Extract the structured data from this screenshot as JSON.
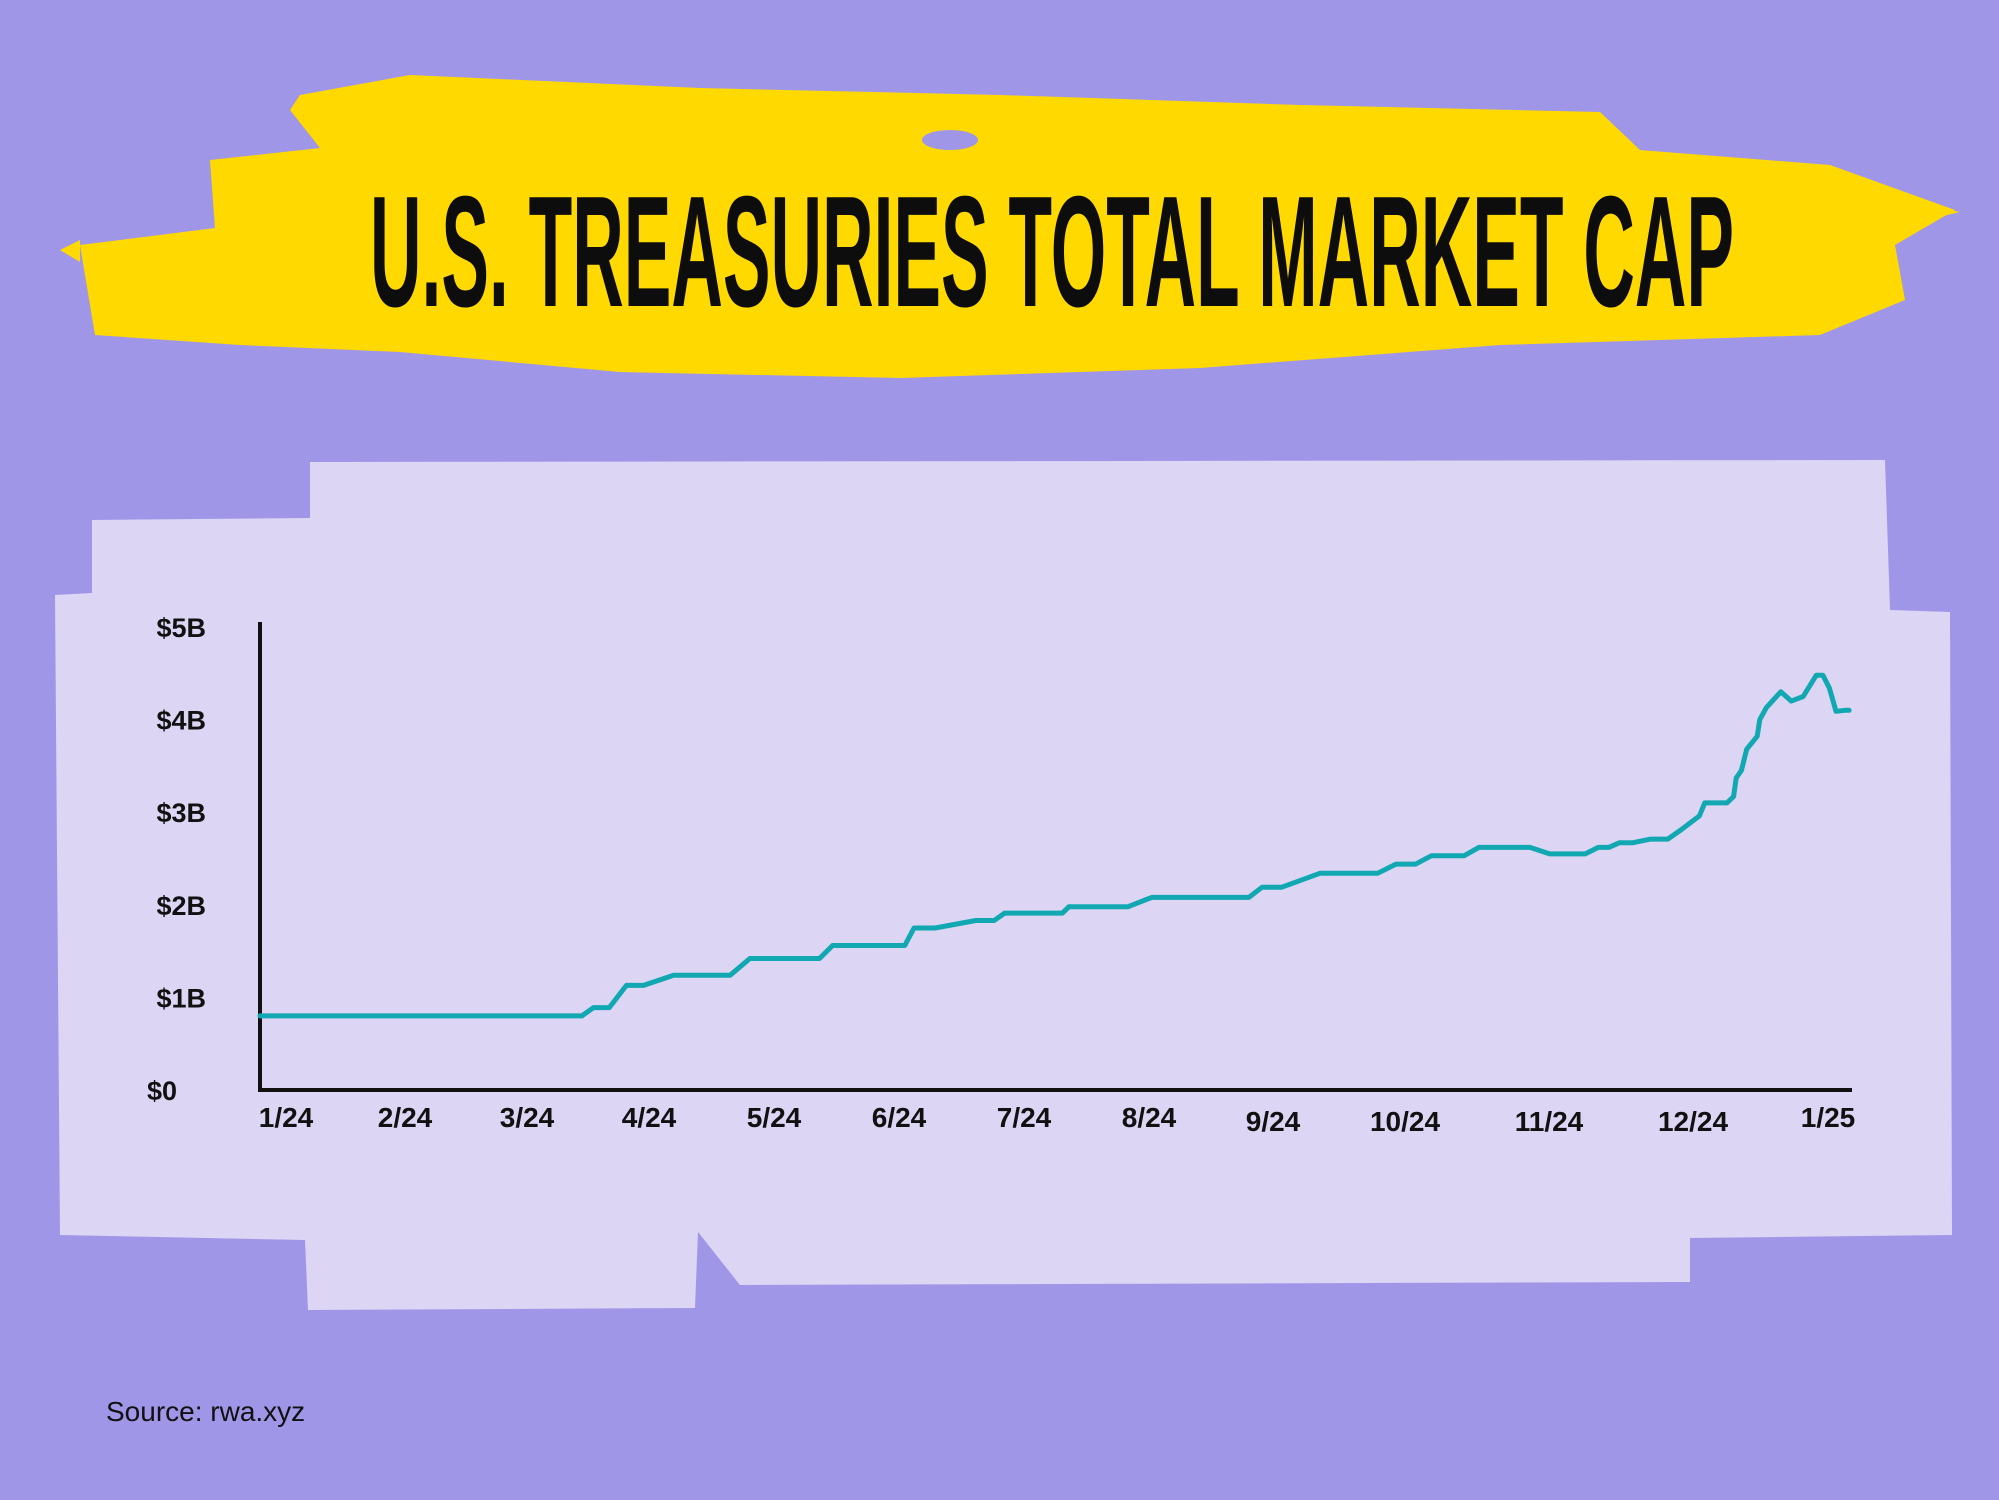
{
  "colors": {
    "background": "#a096e8",
    "brush": "#ffd900",
    "panel": "#dcd5f3",
    "line": "#12a8b2",
    "axis": "#111111"
  },
  "chart_data": {
    "type": "line",
    "title": "U.S. TREASURIES TOTAL MARKET CAP",
    "xlabel": "",
    "ylabel": "",
    "x_unit": "months since 1/24",
    "xlim": [
      0,
      12
    ],
    "ylim": [
      0,
      5
    ],
    "grid": false,
    "y_ticks": [
      {
        "value": 0,
        "label": "$0"
      },
      {
        "value": 1,
        "label": "$1B"
      },
      {
        "value": 2,
        "label": "$2B"
      },
      {
        "value": 3,
        "label": "$3B"
      },
      {
        "value": 4,
        "label": "$4B"
      },
      {
        "value": 5,
        "label": "$5B"
      }
    ],
    "x_ticks": [
      "1/24",
      "2/24",
      "3/24",
      "4/24",
      "5/24",
      "6/24",
      "7/24",
      "8/24",
      "9/24",
      "10/24",
      "11/24",
      "12/24",
      "1/25"
    ],
    "series": [
      {
        "name": "U.S. Treasuries total market cap ($B)",
        "points": [
          [
            0,
            0.8
          ],
          [
            2.45,
            0.8
          ],
          [
            2.54,
            0.89
          ],
          [
            2.66,
            0.89
          ],
          [
            2.79,
            1.13
          ],
          [
            2.92,
            1.13
          ],
          [
            3.15,
            1.24
          ],
          [
            3.58,
            1.24
          ],
          [
            3.73,
            1.42
          ],
          [
            4.26,
            1.42
          ],
          [
            4.36,
            1.56
          ],
          [
            4.91,
            1.56
          ],
          [
            4.98,
            1.75
          ],
          [
            5.14,
            1.75
          ],
          [
            5.45,
            1.83
          ],
          [
            5.59,
            1.83
          ],
          [
            5.67,
            1.91
          ],
          [
            6.11,
            1.91
          ],
          [
            6.16,
            1.98
          ],
          [
            6.61,
            1.98
          ],
          [
            6.79,
            2.08
          ],
          [
            7.53,
            2.08
          ],
          [
            7.63,
            2.19
          ],
          [
            7.78,
            2.19
          ],
          [
            8.07,
            2.34
          ],
          [
            8.51,
            2.34
          ],
          [
            8.65,
            2.44
          ],
          [
            8.8,
            2.44
          ],
          [
            8.92,
            2.53
          ],
          [
            9.17,
            2.53
          ],
          [
            9.28,
            2.62
          ],
          [
            9.67,
            2.62
          ],
          [
            9.82,
            2.55
          ],
          [
            10.09,
            2.55
          ],
          [
            10.19,
            2.62
          ],
          [
            10.27,
            2.62
          ],
          [
            10.35,
            2.67
          ],
          [
            10.45,
            2.67
          ],
          [
            10.59,
            2.71
          ],
          [
            10.72,
            2.71
          ],
          [
            10.83,
            2.82
          ],
          [
            10.96,
            2.96
          ],
          [
            11.0,
            3.1
          ],
          [
            11.17,
            3.1
          ],
          [
            11.22,
            3.17
          ],
          [
            11.24,
            3.37
          ],
          [
            11.28,
            3.45
          ],
          [
            11.32,
            3.68
          ],
          [
            11.4,
            3.82
          ],
          [
            11.42,
            4.0
          ],
          [
            11.47,
            4.13
          ],
          [
            11.58,
            4.3
          ],
          [
            11.66,
            4.2
          ],
          [
            11.75,
            4.25
          ],
          [
            11.85,
            4.48
          ],
          [
            11.9,
            4.48
          ],
          [
            11.95,
            4.34
          ],
          [
            12.0,
            4.09
          ],
          [
            12.07,
            4.1
          ],
          [
            12.1,
            4.1
          ]
        ]
      }
    ]
  },
  "source": "Source: rwa.xyz"
}
